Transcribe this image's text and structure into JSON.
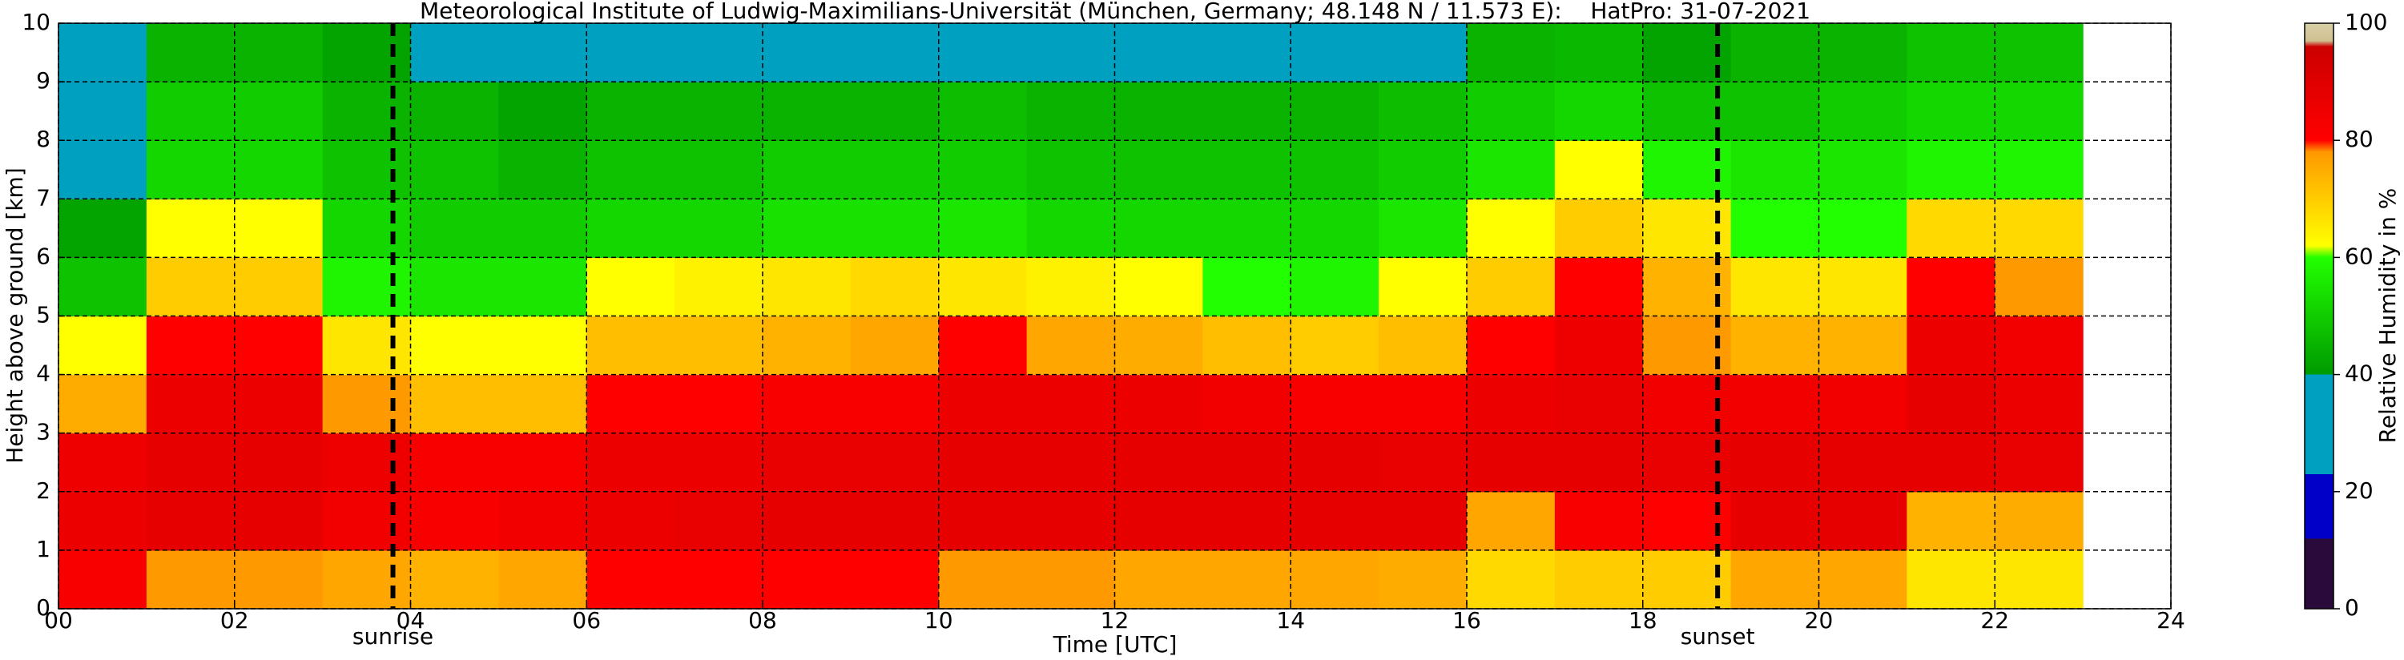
{
  "chart_data": {
    "type": "heatmap",
    "title": "Meteorological Institute of Ludwig-Maximilians-Universität (München, Germany; 48.148 N / 11.573 E):    HatPro: 31-07-2021",
    "xlabel": "Time [UTC]",
    "ylabel": "Height above ground [km]",
    "xlim": [
      0,
      24
    ],
    "ylim": [
      0,
      10
    ],
    "xticks": [
      {
        "value": 0,
        "label": "00"
      },
      {
        "value": 2,
        "label": "02"
      },
      {
        "value": 4,
        "label": "04"
      },
      {
        "value": 6,
        "label": "06"
      },
      {
        "value": 8,
        "label": "08"
      },
      {
        "value": 10,
        "label": "10"
      },
      {
        "value": 12,
        "label": "12"
      },
      {
        "value": 14,
        "label": "14"
      },
      {
        "value": 16,
        "label": "16"
      },
      {
        "value": 18,
        "label": "18"
      },
      {
        "value": 20,
        "label": "20"
      },
      {
        "value": 22,
        "label": "22"
      },
      {
        "value": 24,
        "label": "24"
      }
    ],
    "yticks": [
      0,
      1,
      2,
      3,
      4,
      5,
      6,
      7,
      8,
      9,
      10
    ],
    "grid": true,
    "x_edges": [
      0,
      1,
      2,
      3,
      4,
      5,
      6,
      7,
      8,
      9,
      10,
      11,
      12,
      13,
      14,
      15,
      16,
      17,
      18,
      19,
      20,
      21,
      22,
      23
    ],
    "y_edges": [
      0,
      1,
      2,
      3,
      4,
      5,
      6,
      7,
      8,
      9,
      10
    ],
    "z": [
      [
        82,
        78,
        78,
        76,
        74,
        76,
        80,
        80,
        80,
        80,
        78,
        78,
        76,
        76,
        76,
        75,
        68,
        70,
        70,
        76,
        76,
        66,
        66
      ],
      [
        86,
        88,
        88,
        84,
        82,
        84,
        86,
        87,
        88,
        88,
        88,
        88,
        88,
        88,
        88,
        88,
        76,
        82,
        80,
        88,
        88,
        74,
        75
      ],
      [
        85,
        88,
        88,
        85,
        82,
        82,
        86,
        86,
        87,
        87,
        88,
        88,
        88,
        88,
        88,
        87,
        88,
        88,
        87,
        88,
        88,
        88,
        87
      ],
      [
        75,
        86,
        86,
        78,
        72,
        72,
        80,
        80,
        82,
        82,
        86,
        86,
        86,
        84,
        82,
        82,
        86,
        87,
        84,
        84,
        84,
        88,
        86
      ],
      [
        62,
        80,
        80,
        66,
        62,
        62,
        72,
        72,
        74,
        76,
        80,
        76,
        75,
        72,
        70,
        72,
        80,
        85,
        78,
        74,
        74,
        86,
        84
      ],
      [
        48,
        70,
        70,
        58,
        55,
        55,
        62,
        64,
        66,
        68,
        66,
        64,
        62,
        60,
        58,
        62,
        70,
        80,
        74,
        66,
        66,
        80,
        78
      ],
      [
        42,
        62,
        62,
        52,
        50,
        50,
        52,
        52,
        54,
        54,
        55,
        52,
        52,
        52,
        52,
        55,
        62,
        70,
        66,
        60,
        60,
        68,
        68
      ],
      [
        38,
        52,
        52,
        48,
        48,
        45,
        48,
        48,
        50,
        50,
        50,
        48,
        48,
        48,
        48,
        50,
        55,
        62,
        58,
        55,
        55,
        58,
        58
      ],
      [
        35,
        50,
        50,
        45,
        45,
        42,
        45,
        45,
        45,
        45,
        47,
        45,
        45,
        45,
        45,
        47,
        50,
        52,
        48,
        48,
        50,
        52,
        52
      ],
      [
        35,
        45,
        45,
        42,
        40,
        40,
        40,
        40,
        40,
        40,
        40,
        40,
        40,
        40,
        40,
        40,
        45,
        46,
        42,
        45,
        45,
        48,
        48
      ]
    ],
    "annotations": [
      {
        "x": 3.8,
        "label": "sunrise"
      },
      {
        "x": 18.85,
        "label": "sunset"
      }
    ],
    "colorbar": {
      "label": "Relative Humidity in %",
      "lim": [
        0,
        100
      ],
      "ticks": [
        0,
        20,
        40,
        60,
        80,
        100
      ],
      "colormap": [
        {
          "value": 0,
          "color": "#2a0a3a"
        },
        {
          "value": 12,
          "color": "#2a0a3a"
        },
        {
          "value": 12,
          "color": "#0000c8"
        },
        {
          "value": 23,
          "color": "#0000c8"
        },
        {
          "value": 23,
          "color": "#00a0c0"
        },
        {
          "value": 40,
          "color": "#00a0c0"
        },
        {
          "value": 40,
          "color": "#009a00"
        },
        {
          "value": 60,
          "color": "#22ff00"
        },
        {
          "value": 62,
          "color": "#ffff00"
        },
        {
          "value": 78,
          "color": "#ff9900"
        },
        {
          "value": 80,
          "color": "#ff0000"
        },
        {
          "value": 96,
          "color": "#cc0000"
        },
        {
          "value": 97,
          "color": "#d0c090"
        },
        {
          "value": 100,
          "color": "#d8d0a8"
        }
      ]
    }
  }
}
